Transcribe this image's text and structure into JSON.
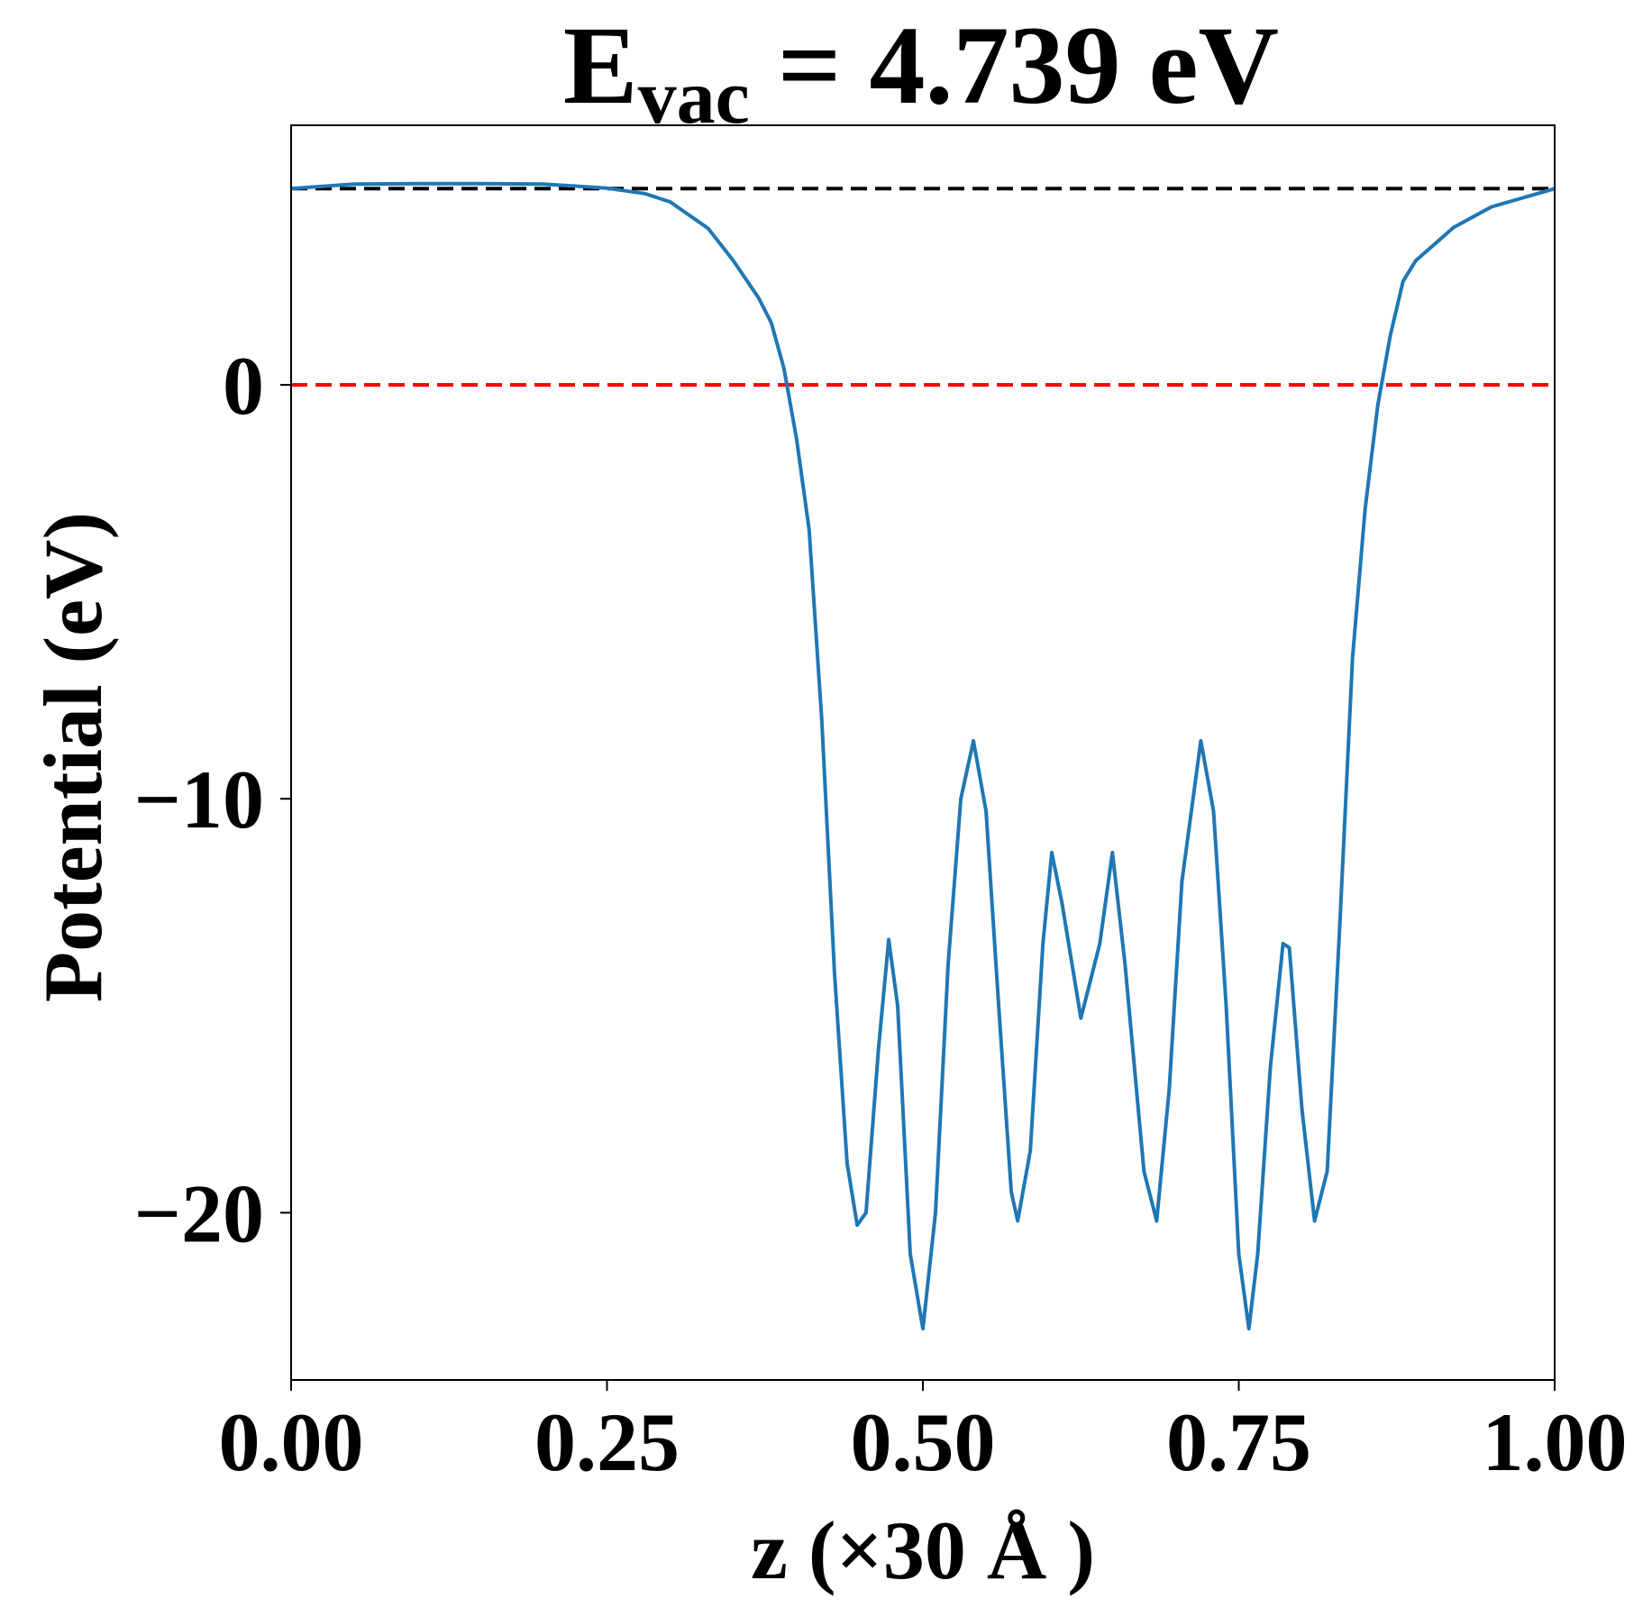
{
  "chart_data": {
    "type": "line",
    "title": {
      "main": "E",
      "subscript": "vac",
      "rest": " = 4.739 eV"
    },
    "xlabel": "z (×30 Å )",
    "ylabel": "Potential (eV)",
    "xlim": [
      0,
      1
    ],
    "ylim": [
      -24.04,
      6.27
    ],
    "xticks": [
      {
        "value": 0,
        "label": "0.00"
      },
      {
        "value": 0.25,
        "label": "0.25"
      },
      {
        "value": 0.5,
        "label": "0.50"
      },
      {
        "value": 0.75,
        "label": "0.75"
      },
      {
        "value": 1,
        "label": "1.00"
      }
    ],
    "yticks": [
      0,
      {
        "value": -10,
        "label": "−10"
      },
      {
        "value": -20,
        "label": "−20"
      }
    ],
    "hlines": [
      {
        "value": 4.739,
        "color": "#000000"
      },
      {
        "value": 0,
        "color": "#ff0000"
      }
    ],
    "series": [
      {
        "color": "#1f77b4",
        "x": [
          0,
          0.05,
          0.1,
          0.15,
          0.2,
          0.25,
          0.28,
          0.3,
          0.33,
          0.35,
          0.37,
          0.38,
          0.39,
          0.4,
          0.41,
          0.42,
          0.43,
          0.44,
          0.448,
          0.455,
          0.465,
          0.473,
          0.48,
          0.49,
          0.5,
          0.51,
          0.52,
          0.53,
          0.54,
          0.55,
          0.56,
          0.57,
          0.575,
          0.585,
          0.595,
          0.602,
          0.61,
          0.625,
          0.64,
          0.65,
          0.66,
          0.675,
          0.685,
          0.695,
          0.705,
          0.72,
          0.73,
          0.74,
          0.75,
          0.758,
          0.765,
          0.775,
          0.785,
          0.79,
          0.8,
          0.81,
          0.82,
          0.83,
          0.84,
          0.85,
          0.86,
          0.87,
          0.88,
          0.89,
          0.92,
          0.95,
          1
        ],
        "values": [
          4.74,
          4.85,
          4.86,
          4.86,
          4.85,
          4.75,
          4.62,
          4.42,
          3.78,
          3.0,
          2.1,
          1.5,
          0.4,
          -1.3,
          -3.5,
          -8.1,
          -14.2,
          -18.8,
          -20.3,
          -20.0,
          -16.0,
          -13.4,
          -15.0,
          -21.0,
          -22.8,
          -20.0,
          -14.0,
          -10.0,
          -8.6,
          -10.3,
          -15.0,
          -19.5,
          -20.2,
          -18.5,
          -13.5,
          -11.3,
          -12.5,
          -15.3,
          -13.5,
          -11.3,
          -14.0,
          -19.0,
          -20.2,
          -17.0,
          -12.0,
          -8.6,
          -10.3,
          -15.0,
          -21.0,
          -22.8,
          -21.0,
          -16.5,
          -13.5,
          -13.6,
          -17.5,
          -20.2,
          -19.0,
          -13.0,
          -6.6,
          -3.0,
          -0.5,
          1.2,
          2.5,
          3.0,
          3.8,
          4.3,
          4.74
        ]
      }
    ]
  }
}
